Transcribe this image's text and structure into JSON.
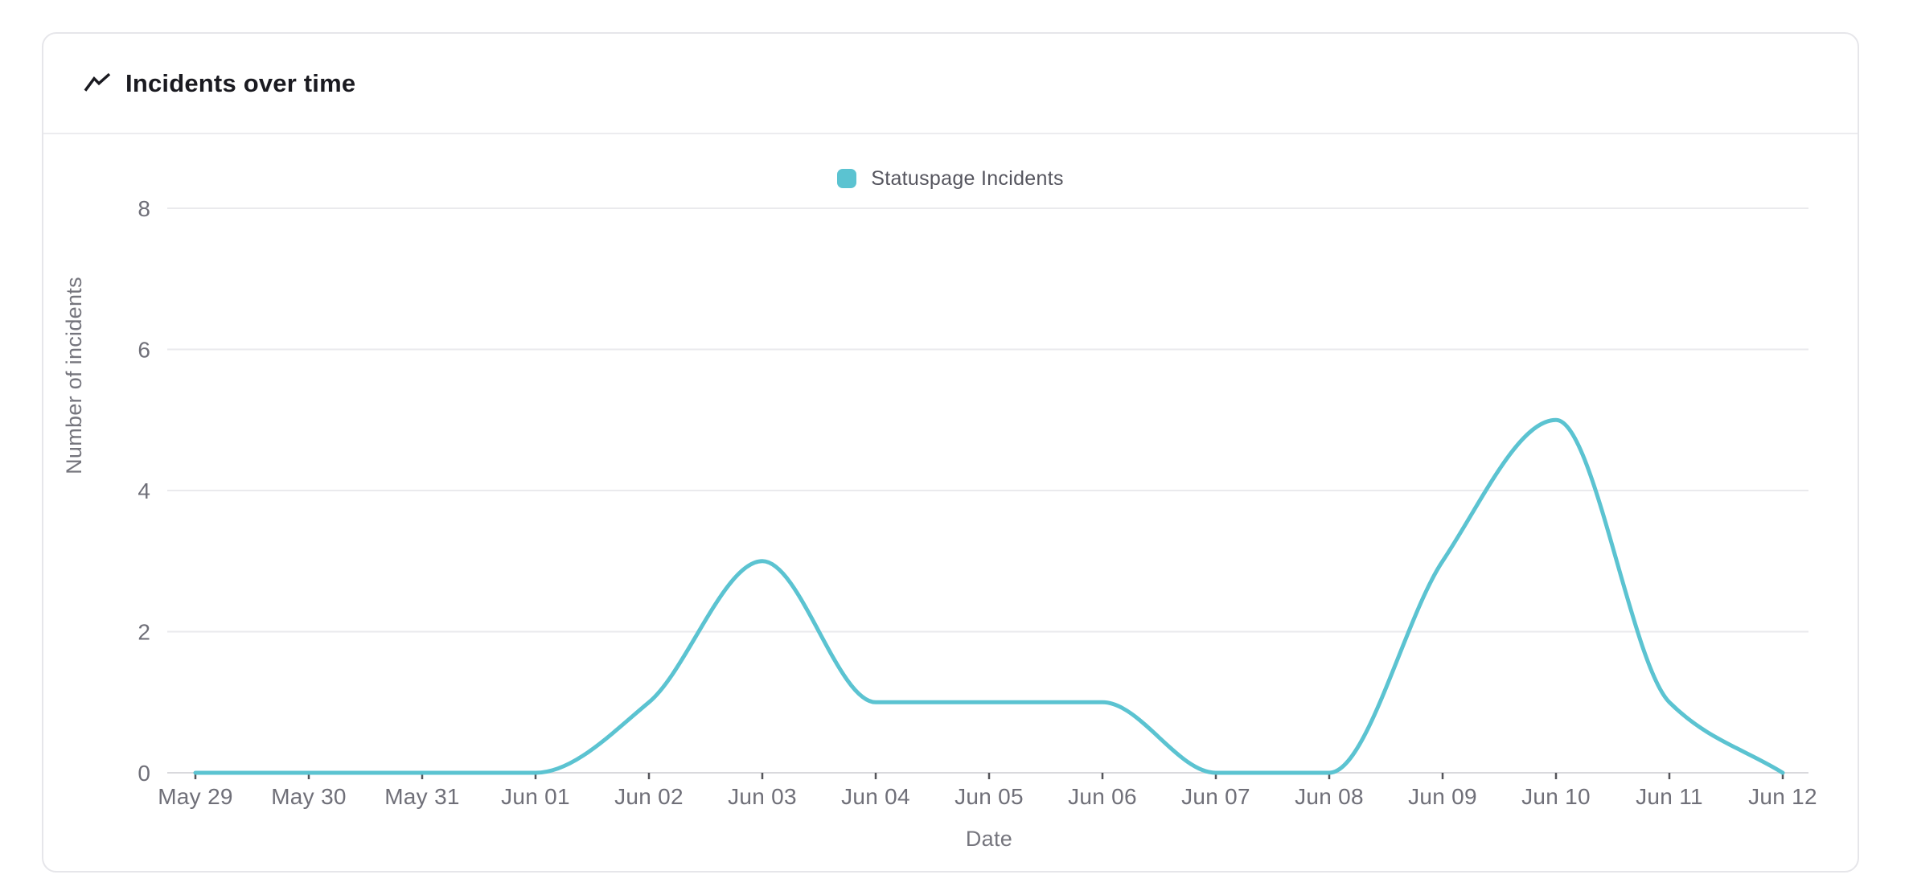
{
  "card": {
    "title": "Incidents over time"
  },
  "legend": {
    "items": [
      {
        "label": "Statuspage Incidents",
        "color": "#5BC3D1"
      }
    ]
  },
  "chart_data": {
    "type": "line",
    "title": "Incidents over time",
    "categories": [
      "May 29",
      "May 30",
      "May 31",
      "Jun 01",
      "Jun 02",
      "Jun 03",
      "Jun 04",
      "Jun 05",
      "Jun 06",
      "Jun 07",
      "Jun 08",
      "Jun 09",
      "Jun 10",
      "Jun 11",
      "Jun 12"
    ],
    "series": [
      {
        "name": "Statuspage Incidents",
        "color": "#5BC3D1",
        "values": [
          0,
          0,
          0,
          0,
          1,
          3,
          1,
          1,
          1,
          0,
          0,
          3,
          5,
          1,
          0
        ]
      }
    ],
    "xlabel": "Date",
    "ylabel": "Number of incidents",
    "ylim": [
      0,
      8
    ],
    "yticks": [
      0,
      2,
      4,
      6,
      8
    ],
    "grid": "horizontal-only",
    "legend_position": "top-center",
    "curve": "smooth-monotone",
    "line_width": 5
  },
  "colors": {
    "line": "#5BC3D1",
    "gridline": "#EAEAED",
    "axis_line": "#D9D9DD",
    "tick_mark": "#55555A",
    "tick_label": "#6F6F78",
    "axis_title": "#75757D",
    "legend_text": "#55555E",
    "title_text": "#1A1A20",
    "card_border": "#E6E6EA",
    "background": "#FFFFFF"
  }
}
